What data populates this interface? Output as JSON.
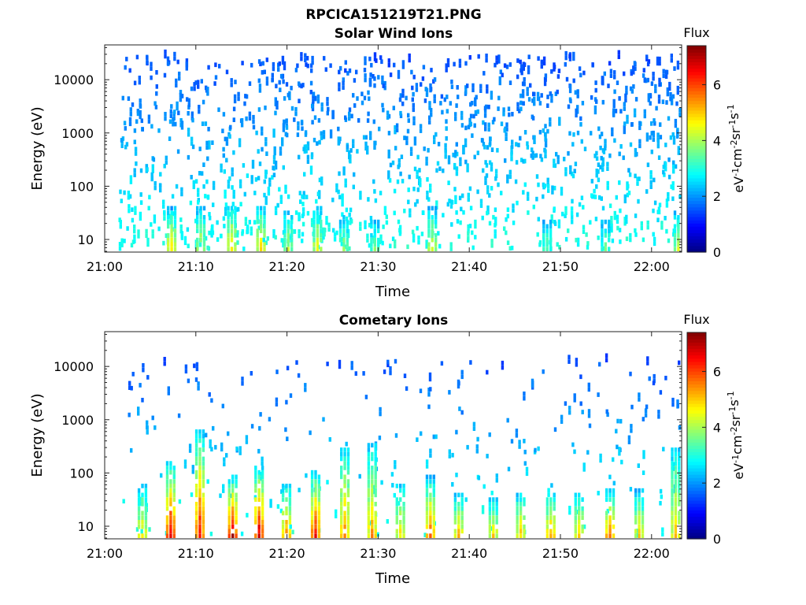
{
  "figure": {
    "title": "RPCICA151219T21.PNG"
  },
  "colorbar": {
    "label": "Flux",
    "ticks": [
      "0",
      "2",
      "4",
      "6"
    ],
    "tick_values": [
      0,
      2,
      4,
      6
    ],
    "range": [
      0,
      7.4
    ],
    "unit_parts": [
      "eV",
      "-1",
      "cm",
      "-2",
      "sr",
      "-1",
      "s",
      "-1"
    ],
    "colormap": "jet"
  },
  "chart_data": [
    {
      "type": "heatmap",
      "title": "Solar Wind Ions",
      "xlabel": "Time",
      "ylabel": "Energy (eV)",
      "x_ticks": [
        "21:00",
        "21:10",
        "21:20",
        "21:30",
        "21:40",
        "21:50",
        "22:00"
      ],
      "x_tick_values": [
        0,
        10,
        20,
        30,
        40,
        50,
        60
      ],
      "xlim": [
        "21:00",
        "22:03"
      ],
      "xlim_minutes": [
        0,
        63.3
      ],
      "y_scale": "log",
      "y_ticks": [
        "10",
        "100",
        "1000",
        "10000"
      ],
      "y_tick_values": [
        10,
        100,
        1000,
        10000
      ],
      "ylim": [
        5.8,
        45000
      ],
      "grid": false,
      "bursts": [
        {
          "t": 7.2,
          "emax": 35,
          "peak": 4.9
        },
        {
          "t": 10.4,
          "emax": 35,
          "peak": 4.4
        },
        {
          "t": 13.8,
          "emax": 40,
          "peak": 4.9
        },
        {
          "t": 17.0,
          "emax": 40,
          "peak": 4.8
        },
        {
          "t": 20.0,
          "emax": 30,
          "peak": 4.0
        },
        {
          "t": 23.2,
          "emax": 35,
          "peak": 4.5
        },
        {
          "t": 26.1,
          "emax": 25,
          "peak": 3.8
        },
        {
          "t": 29.5,
          "emax": 20,
          "peak": 3.6
        },
        {
          "t": 35.8,
          "emax": 35,
          "peak": 4.3
        },
        {
          "t": 48.4,
          "emax": 20,
          "peak": 3.5
        },
        {
          "t": 54.8,
          "emax": 20,
          "peak": 3.5
        },
        {
          "t": 62.8,
          "emax": 30,
          "peak": 4.2
        }
      ],
      "background": {
        "emin": 6,
        "emax": 25000,
        "count": 1300,
        "value_low": 1.5,
        "value_high": 3.0
      }
    },
    {
      "type": "heatmap",
      "title": "Cometary Ions",
      "xlabel": "Time",
      "ylabel": "Energy (eV)",
      "x_ticks": [
        "21:00",
        "21:10",
        "21:20",
        "21:30",
        "21:40",
        "21:50",
        "22:00"
      ],
      "x_tick_values": [
        0,
        10,
        20,
        30,
        40,
        50,
        60
      ],
      "xlim": [
        "21:00",
        "22:03"
      ],
      "xlim_minutes": [
        0,
        63.3
      ],
      "y_scale": "log",
      "y_ticks": [
        "10",
        "100",
        "1000",
        "10000"
      ],
      "y_tick_values": [
        10,
        100,
        1000,
        10000
      ],
      "ylim": [
        5.8,
        45000
      ],
      "grid": false,
      "bursts": [
        {
          "t": 4.0,
          "emax": 60,
          "peak": 4.9
        },
        {
          "t": 7.1,
          "emax": 150,
          "peak": 6.8
        },
        {
          "t": 10.3,
          "emax": 600,
          "peak": 6.5
        },
        {
          "t": 13.9,
          "emax": 80,
          "peak": 7.0
        },
        {
          "t": 16.8,
          "emax": 130,
          "peak": 6.8
        },
        {
          "t": 19.8,
          "emax": 60,
          "peak": 5.6
        },
        {
          "t": 23.0,
          "emax": 100,
          "peak": 6.5
        },
        {
          "t": 26.2,
          "emax": 300,
          "peak": 5.6
        },
        {
          "t": 29.2,
          "emax": 350,
          "peak": 5.4
        },
        {
          "t": 32.3,
          "emax": 60,
          "peak": 4.8
        },
        {
          "t": 35.6,
          "emax": 80,
          "peak": 5.9
        },
        {
          "t": 38.7,
          "emax": 40,
          "peak": 5.2
        },
        {
          "t": 42.5,
          "emax": 30,
          "peak": 4.9
        },
        {
          "t": 45.5,
          "emax": 40,
          "peak": 5.0
        },
        {
          "t": 48.8,
          "emax": 40,
          "peak": 5.5
        },
        {
          "t": 51.9,
          "emax": 40,
          "peak": 5.1
        },
        {
          "t": 55.3,
          "emax": 45,
          "peak": 5.9
        },
        {
          "t": 58.5,
          "emax": 45,
          "peak": 4.9
        },
        {
          "t": 62.5,
          "emax": 300,
          "peak": 5.0
        }
      ],
      "background": {
        "emin": 6,
        "emax": 12000,
        "count": 260,
        "value_low": 1.5,
        "value_high": 3.0
      }
    }
  ]
}
